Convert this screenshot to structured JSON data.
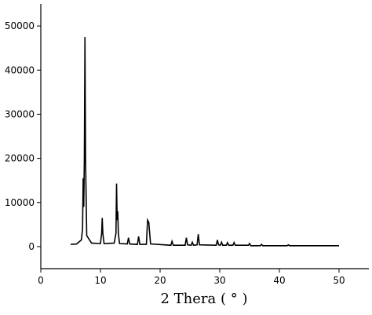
{
  "chart_data": {
    "type": "line",
    "x_label": "2 Thera ( °   )",
    "xlim": [
      0,
      55
    ],
    "xticks": [
      0,
      10,
      20,
      30,
      40,
      50
    ],
    "ylim": [
      -5000,
      55000
    ],
    "yticks": [
      0,
      10000,
      20000,
      30000,
      40000,
      50000
    ],
    "series": [
      {
        "color": "#000000",
        "x": [
          5,
          6,
          6.8,
          7.0,
          7.1,
          7.2,
          7.3,
          7.4,
          7.5,
          7.7,
          8.5,
          10.0,
          10.2,
          10.3,
          10.4,
          10.6,
          12.3,
          12.6,
          12.7,
          12.8,
          12.9,
          13.0,
          13.2,
          14.5,
          14.7,
          14.9,
          16.2,
          16.4,
          16.6,
          17.7,
          17.9,
          18.1,
          18.4,
          21.8,
          22.0,
          22.2,
          24.2,
          24.4,
          24.6,
          25.2,
          25.4,
          25.6,
          26.2,
          26.4,
          26.6,
          29.4,
          29.6,
          29.8,
          30.1,
          30.3,
          30.5,
          31.1,
          31.3,
          31.5,
          32.2,
          32.4,
          32.6,
          34.8,
          35.0,
          35.2,
          36.8,
          37.0,
          37.2,
          41.3,
          41.5,
          41.7,
          50
        ],
        "values": [
          500,
          600,
          1500,
          4000,
          15500,
          9000,
          20000,
          47500,
          20000,
          2500,
          800,
          700,
          3000,
          6500,
          3000,
          700,
          800,
          3000,
          14300,
          6000,
          8000,
          3000,
          700,
          600,
          2000,
          600,
          500,
          2300,
          500,
          500,
          6000,
          5500,
          600,
          300,
          1200,
          300,
          300,
          2000,
          400,
          300,
          1000,
          300,
          400,
          2800,
          400,
          300,
          1500,
          400,
          300,
          1000,
          300,
          300,
          900,
          300,
          300,
          900,
          300,
          300,
          700,
          200,
          200,
          500,
          200,
          200,
          400,
          200,
          200
        ]
      }
    ]
  }
}
